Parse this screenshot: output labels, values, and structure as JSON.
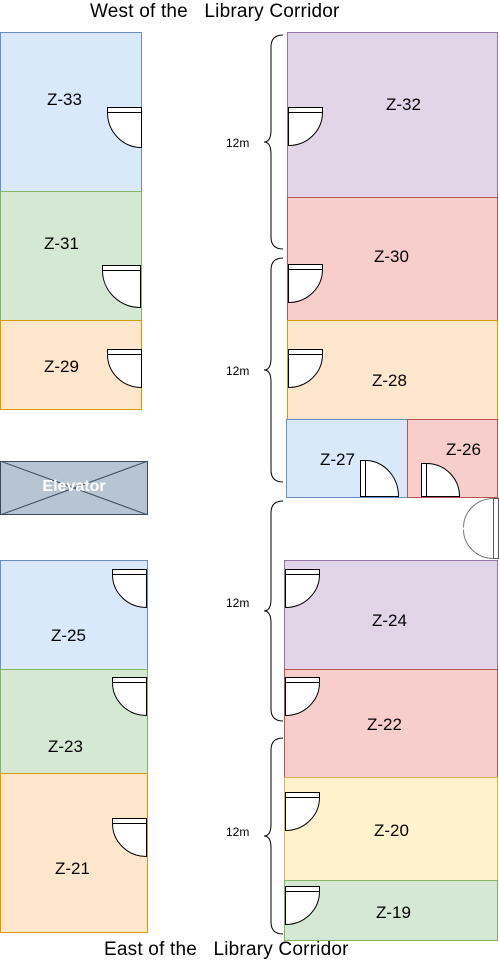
{
  "headings": {
    "top": "West of the   Library Corridor",
    "bottom": "East of the   Library Corridor"
  },
  "dimension_label": "12m",
  "elevator_label": "Elevator",
  "rooms": {
    "z33": "Z-33",
    "z31": "Z-31",
    "z29": "Z-29",
    "z25": "Z-25",
    "z23": "Z-23",
    "z21": "Z-21",
    "z32": "Z-32",
    "z30": "Z-30",
    "z28": "Z-28",
    "z27": "Z-27",
    "z26": "Z-26",
    "z24": "Z-24",
    "z22": "Z-22",
    "z20": "Z-20",
    "z19": "Z-19"
  },
  "colors": {
    "blue": "#dae8fc",
    "green": "#d5e8d4",
    "orange": "#ffe6cc",
    "purple": "#e1d5e7",
    "red": "#f8cecc",
    "yellow": "#fff2cc",
    "elevator": "#b7c5d2"
  }
}
